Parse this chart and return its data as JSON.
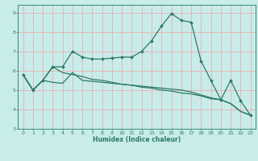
{
  "title": "",
  "xlabel": "Humidex (Indice chaleur)",
  "bg_color": "#c8ecea",
  "grid_color": "#e8b0b0",
  "line_color": "#2a7a65",
  "ylim": [
    3,
    9.4
  ],
  "xlim": [
    -0.5,
    23.5
  ],
  "yticks": [
    3,
    4,
    5,
    6,
    7,
    8,
    9
  ],
  "xticks": [
    0,
    1,
    2,
    3,
    4,
    5,
    6,
    7,
    8,
    9,
    10,
    11,
    12,
    13,
    14,
    15,
    16,
    17,
    18,
    19,
    20,
    21,
    22,
    23
  ],
  "line1_x": [
    0,
    1,
    2,
    3,
    4,
    5,
    6,
    7,
    8,
    9,
    10,
    11,
    12,
    13,
    14,
    15,
    16,
    17,
    18,
    19,
    20,
    21,
    22,
    23
  ],
  "line1_y": [
    5.8,
    5.0,
    5.5,
    6.2,
    6.2,
    7.0,
    6.7,
    6.6,
    6.6,
    6.65,
    6.7,
    6.7,
    7.0,
    7.55,
    8.3,
    8.95,
    8.6,
    8.5,
    6.5,
    5.5,
    4.5,
    5.5,
    4.45,
    3.7
  ],
  "line2_x": [
    0,
    1,
    2,
    3,
    4,
    5,
    6,
    7,
    8,
    9,
    10,
    11,
    12,
    13,
    14,
    15,
    16,
    17,
    18,
    19,
    20,
    21,
    22,
    23
  ],
  "line2_y": [
    5.8,
    5.0,
    5.5,
    5.4,
    5.35,
    5.9,
    5.5,
    5.45,
    5.4,
    5.35,
    5.3,
    5.25,
    5.2,
    5.15,
    5.1,
    5.05,
    5.0,
    4.9,
    4.75,
    4.6,
    4.5,
    4.3,
    3.9,
    3.7
  ],
  "line3_x": [
    0,
    1,
    2,
    3,
    4,
    5,
    6,
    7,
    8,
    9,
    10,
    11,
    12,
    13,
    14,
    15,
    16,
    17,
    18,
    19,
    20,
    21,
    22,
    23
  ],
  "line3_y": [
    5.8,
    5.0,
    5.5,
    6.2,
    5.9,
    5.8,
    5.7,
    5.55,
    5.5,
    5.4,
    5.3,
    5.25,
    5.15,
    5.1,
    5.0,
    4.95,
    4.85,
    4.8,
    4.7,
    4.55,
    4.5,
    4.3,
    3.9,
    3.7
  ]
}
